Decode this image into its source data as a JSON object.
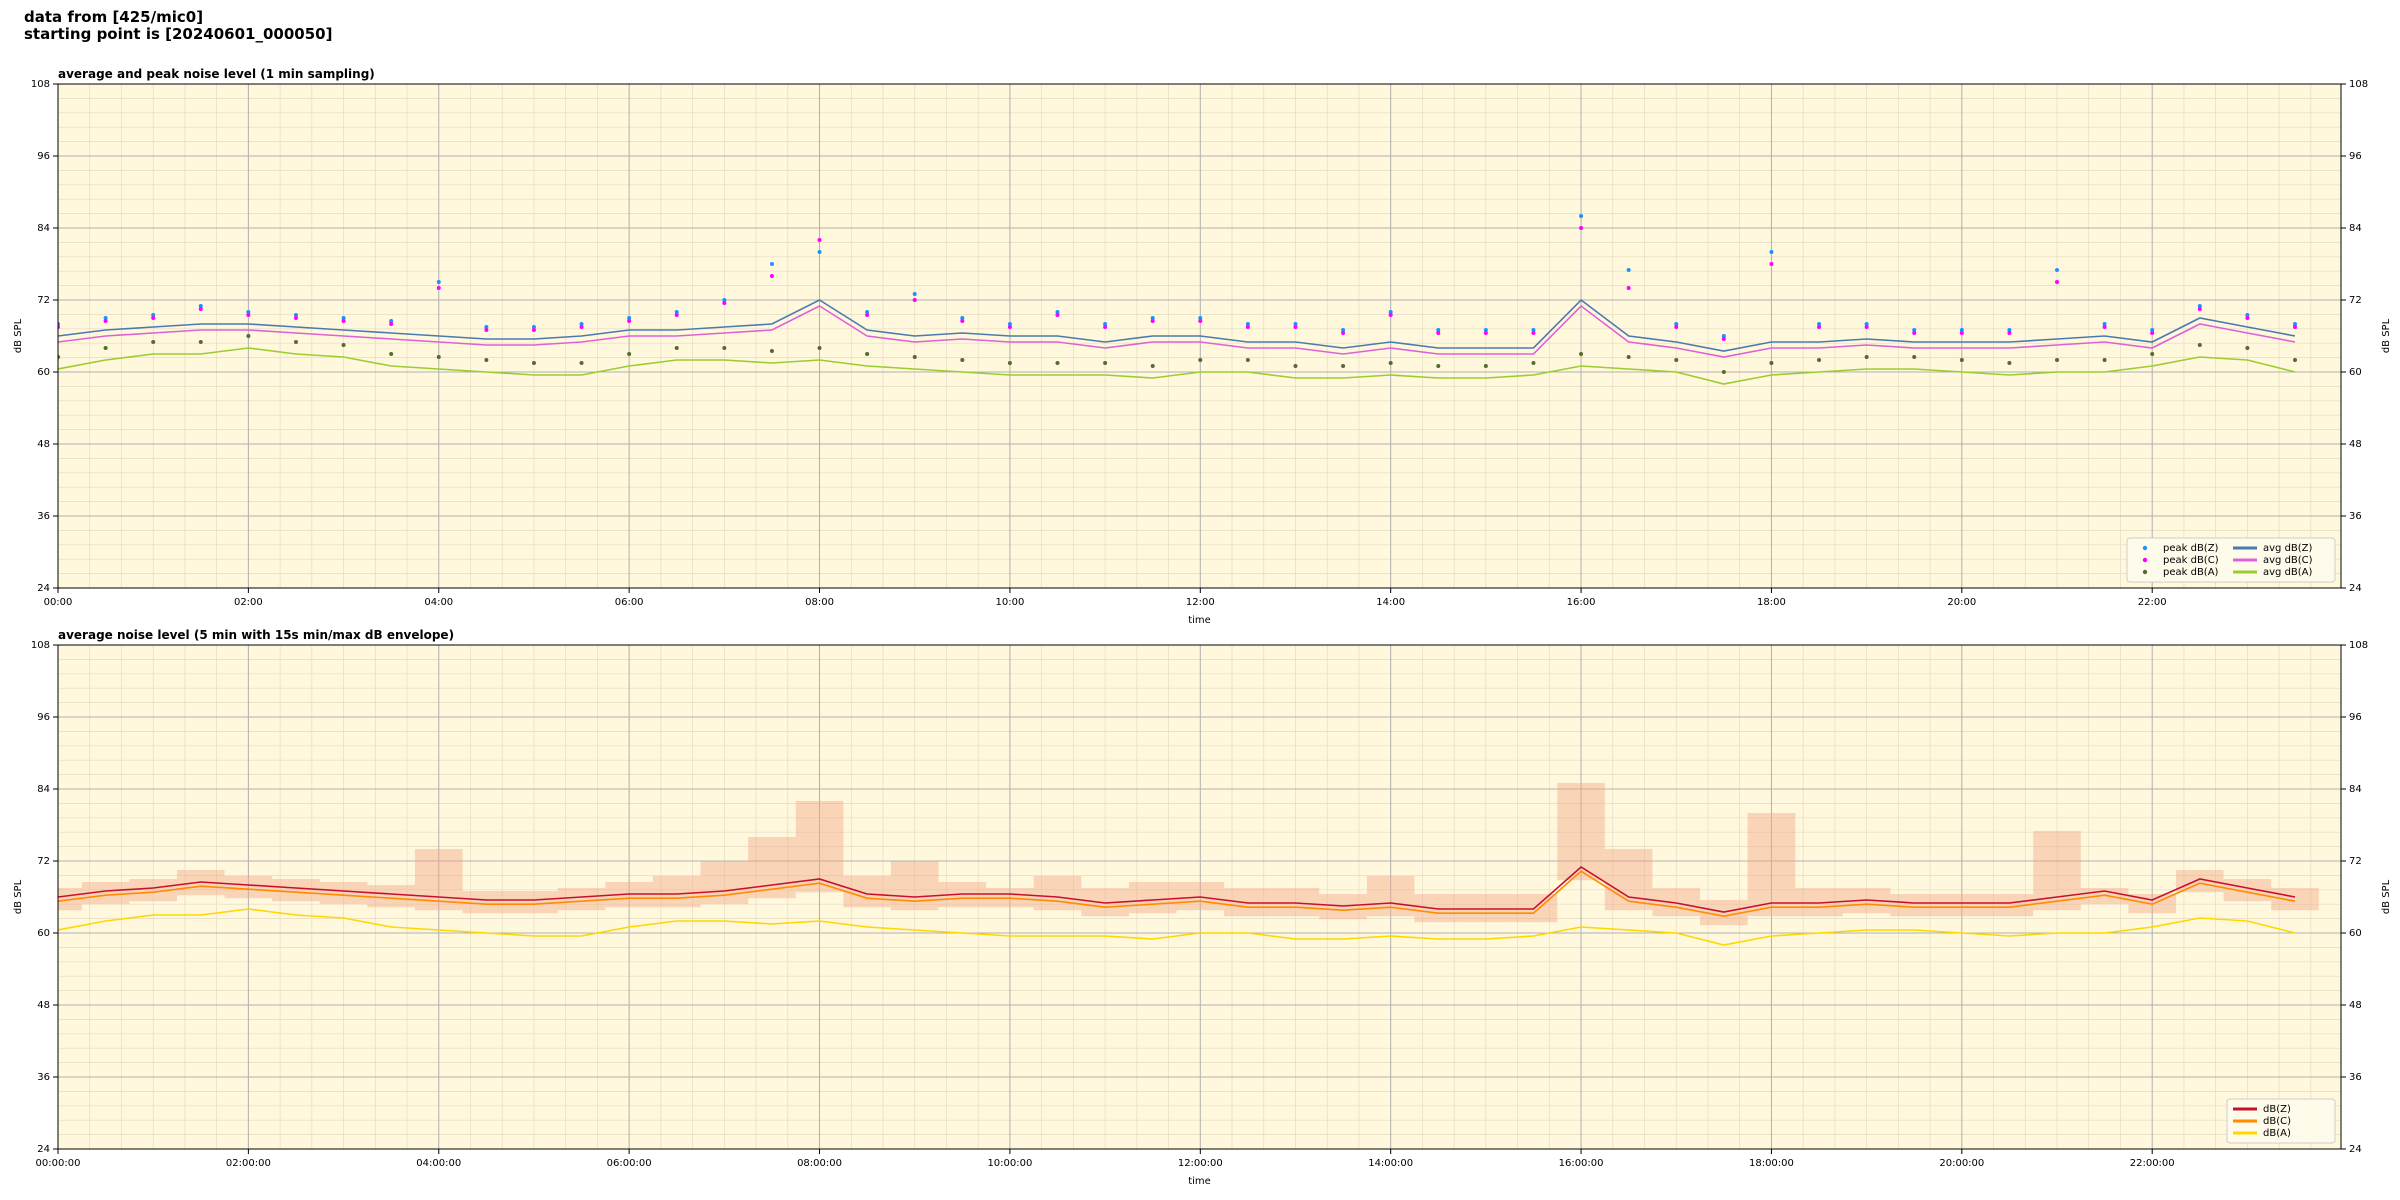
{
  "suptitle": [
    "data from [425/mic0]",
    "starting point is [20240601_000050]"
  ],
  "chart_data": [
    {
      "type": "line",
      "title": "average and peak noise level (1 min sampling)",
      "xlabel": "time",
      "ylabel": "dB SPL",
      "x": [
        "00:00",
        "00:30",
        "01:00",
        "01:30",
        "02:00",
        "02:30",
        "03:00",
        "03:30",
        "04:00",
        "04:30",
        "05:00",
        "05:30",
        "06:00",
        "06:30",
        "07:00",
        "07:30",
        "08:00",
        "08:30",
        "09:00",
        "09:30",
        "10:00",
        "10:30",
        "11:00",
        "11:30",
        "12:00",
        "12:30",
        "13:00",
        "13:30",
        "14:00",
        "14:30",
        "15:00",
        "15:30",
        "16:00",
        "16:30",
        "17:00",
        "17:30",
        "18:00",
        "18:30",
        "19:00",
        "19:30",
        "20:00",
        "20:30",
        "21:00",
        "21:30",
        "22:00",
        "22:30",
        "23:00",
        "23:30"
      ],
      "xlim": [
        "00:00",
        "23:59"
      ],
      "xticks": [
        "00:00",
        "02:00",
        "04:00",
        "06:00",
        "08:00",
        "10:00",
        "12:00",
        "14:00",
        "16:00",
        "18:00",
        "20:00",
        "22:00"
      ],
      "ylim": [
        24,
        108
      ],
      "yticks": [
        24,
        36,
        48,
        60,
        72,
        84,
        96,
        108
      ],
      "grid": true,
      "legend": "lower right",
      "legend_ncol": 2,
      "series": [
        {
          "name": "peak dB(Z)",
          "type": "scatter",
          "color": "#1e90ff",
          "values": [
            68,
            69,
            69.5,
            71,
            70,
            69.5,
            69,
            68.5,
            75,
            67.5,
            67.5,
            68,
            69,
            70,
            72,
            78,
            80,
            70,
            73,
            69,
            68,
            70,
            68,
            69,
            69,
            68,
            68,
            67,
            70,
            67,
            67,
            67,
            86,
            77,
            68,
            66,
            80,
            68,
            68,
            67,
            67,
            67,
            77,
            68,
            67,
            71,
            69.5,
            68
          ]
        },
        {
          "name": "peak dB(C)",
          "type": "scatter",
          "color": "#ff00ff",
          "values": [
            67.5,
            68.5,
            69,
            70.5,
            69.5,
            69,
            68.5,
            68,
            74,
            67,
            67,
            67.5,
            68.5,
            69.5,
            71.5,
            76,
            82,
            69.5,
            72,
            68.5,
            67.5,
            69.5,
            67.5,
            68.5,
            68.5,
            67.5,
            67.5,
            66.5,
            69.5,
            66.5,
            66.5,
            66.5,
            84,
            74,
            67.5,
            65.5,
            78,
            67.5,
            67.5,
            66.5,
            66.5,
            66.5,
            75,
            67.5,
            66.5,
            70.5,
            69,
            67.5
          ]
        },
        {
          "name": "peak dB(A)",
          "type": "scatter",
          "color": "#556b2f",
          "values": [
            62.5,
            64,
            65,
            65,
            66,
            65,
            64.5,
            63,
            62.5,
            62,
            61.5,
            61.5,
            63,
            64,
            64,
            63.5,
            64,
            63,
            62.5,
            62,
            61.5,
            61.5,
            61.5,
            61,
            62,
            62,
            61,
            61,
            61.5,
            61,
            61,
            61.5,
            63,
            62.5,
            62,
            60,
            61.5,
            62,
            62.5,
            62.5,
            62,
            61.5,
            62,
            62,
            63,
            64.5,
            64,
            62
          ]
        },
        {
          "name": "avg dB(Z)",
          "type": "line",
          "color": "#4a7ab0",
          "values": [
            66,
            67,
            67.5,
            68,
            68,
            67.5,
            67,
            66.5,
            66,
            65.5,
            65.5,
            66,
            67,
            67,
            67.5,
            68,
            72,
            67,
            66,
            66.5,
            66,
            66,
            65,
            66,
            66,
            65,
            65,
            64,
            65,
            64,
            64,
            64,
            72,
            66,
            65,
            63.5,
            65,
            65,
            65.5,
            65,
            65,
            65,
            65.5,
            66,
            65,
            69,
            67.5,
            66
          ]
        },
        {
          "name": "avg dB(C)",
          "type": "line",
          "color": "#e060d8",
          "values": [
            65,
            66,
            66.5,
            67,
            67,
            66.5,
            66,
            65.5,
            65,
            64.5,
            64.5,
            65,
            66,
            66,
            66.5,
            67,
            71,
            66,
            65,
            65.5,
            65,
            65,
            64,
            65,
            65,
            64,
            64,
            63,
            64,
            63,
            63,
            63,
            71,
            65,
            64,
            62.5,
            64,
            64,
            64.5,
            64,
            64,
            64,
            64.5,
            65,
            64,
            68,
            66.5,
            65
          ]
        },
        {
          "name": "avg dB(A)",
          "type": "line",
          "color": "#9acd32",
          "values": [
            60.5,
            62,
            63,
            63,
            64,
            63,
            62.5,
            61,
            60.5,
            60,
            59.5,
            59.5,
            61,
            62,
            62,
            61.5,
            62,
            61,
            60.5,
            60,
            59.5,
            59.5,
            59.5,
            59,
            60,
            60,
            59,
            59,
            59.5,
            59,
            59,
            59.5,
            61,
            60.5,
            60,
            58,
            59.5,
            60,
            60.5,
            60.5,
            60,
            59.5,
            60,
            60,
            61,
            62.5,
            62,
            60
          ]
        }
      ]
    },
    {
      "type": "line",
      "title": "average noise level (5 min with 15s min/max dB envelope)",
      "xlabel": "time",
      "ylabel": "dB SPL",
      "x": [
        "00:00:00",
        "00:30:00",
        "01:00:00",
        "01:30:00",
        "02:00:00",
        "02:30:00",
        "03:00:00",
        "03:30:00",
        "04:00:00",
        "04:30:00",
        "05:00:00",
        "05:30:00",
        "06:00:00",
        "06:30:00",
        "07:00:00",
        "07:30:00",
        "08:00:00",
        "08:30:00",
        "09:00:00",
        "09:30:00",
        "10:00:00",
        "10:30:00",
        "11:00:00",
        "11:30:00",
        "12:00:00",
        "12:30:00",
        "13:00:00",
        "13:30:00",
        "14:00:00",
        "14:30:00",
        "15:00:00",
        "15:30:00",
        "16:00:00",
        "16:30:00",
        "17:00:00",
        "17:30:00",
        "18:00:00",
        "18:30:00",
        "19:00:00",
        "19:30:00",
        "20:00:00",
        "20:30:00",
        "21:00:00",
        "21:30:00",
        "22:00:00",
        "22:30:00",
        "23:00:00",
        "23:30:00"
      ],
      "xlim": [
        "00:00:00",
        "23:59:00"
      ],
      "xticks": [
        "00:00:00",
        "02:00:00",
        "04:00:00",
        "06:00:00",
        "08:00:00",
        "10:00:00",
        "12:00:00",
        "14:00:00",
        "16:00:00",
        "18:00:00",
        "20:00:00",
        "22:00:00"
      ],
      "ylim": [
        24,
        108
      ],
      "yticks": [
        24,
        36,
        48,
        60,
        72,
        84,
        96,
        108
      ],
      "grid": true,
      "legend": "lower right",
      "legend_ncol": 1,
      "envelope": {
        "color": "#f4a88a",
        "lower": [
          63.8,
          64.8,
          65.3,
          66.3,
          65.8,
          65.3,
          64.8,
          64.3,
          63.8,
          63.3,
          63.3,
          63.8,
          64.3,
          64.3,
          64.8,
          65.8,
          66.8,
          64.3,
          63.8,
          64.3,
          64.3,
          63.8,
          62.8,
          63.3,
          63.8,
          62.8,
          62.8,
          62.3,
          62.8,
          61.8,
          61.8,
          61.8,
          68.8,
          63.8,
          62.8,
          61.3,
          62.8,
          62.8,
          63.3,
          62.8,
          62.8,
          62.8,
          63.8,
          64.8,
          63.3,
          66.8,
          65.3,
          63.8
        ],
        "upper": [
          67.5,
          68.5,
          69,
          70.5,
          69.5,
          69,
          68.5,
          68,
          74,
          67,
          67,
          67.5,
          68.5,
          69.5,
          72,
          76,
          82,
          69.5,
          72,
          68.5,
          67.5,
          69.5,
          67.5,
          68.5,
          68.5,
          67.5,
          67.5,
          66.5,
          69.5,
          66.5,
          66.5,
          66.5,
          85,
          74,
          67.5,
          65.5,
          80,
          67.5,
          67.5,
          66.5,
          66.5,
          66.5,
          77,
          67.5,
          66.5,
          70.5,
          69,
          67.5
        ]
      },
      "series": [
        {
          "name": "dB(Z)",
          "type": "line",
          "color": "#c8102e",
          "values": [
            66,
            67,
            67.5,
            68.5,
            68,
            67.5,
            67,
            66.5,
            66,
            65.5,
            65.5,
            66,
            66.5,
            66.5,
            67,
            68,
            69,
            66.5,
            66,
            66.5,
            66.5,
            66,
            65,
            65.5,
            66,
            65,
            65,
            64.5,
            65,
            64,
            64,
            64,
            71,
            66,
            65,
            63.5,
            65,
            65,
            65.5,
            65,
            65,
            65,
            66,
            67,
            65.5,
            69,
            67.5,
            66
          ]
        },
        {
          "name": "dB(C)",
          "type": "line",
          "color": "#ff8c00",
          "values": [
            65.3,
            66.3,
            66.8,
            67.8,
            67.3,
            66.8,
            66.3,
            65.8,
            65.3,
            64.8,
            64.8,
            65.3,
            65.8,
            65.8,
            66.3,
            67.3,
            68.3,
            65.8,
            65.3,
            65.8,
            65.8,
            65.3,
            64.3,
            64.8,
            65.3,
            64.3,
            64.3,
            63.8,
            64.3,
            63.3,
            63.3,
            63.3,
            70.3,
            65.3,
            64.3,
            62.8,
            64.3,
            64.3,
            64.8,
            64.3,
            64.3,
            64.3,
            65.3,
            66.3,
            64.8,
            68.3,
            66.8,
            65.3
          ]
        },
        {
          "name": "dB(A)",
          "type": "line",
          "color": "#ffd700",
          "values": [
            60.5,
            62,
            63,
            63,
            64,
            63,
            62.5,
            61,
            60.5,
            60,
            59.5,
            59.5,
            61,
            62,
            62,
            61.5,
            62,
            61,
            60.5,
            60,
            59.5,
            59.5,
            59.5,
            59,
            60,
            60,
            59,
            59,
            59.5,
            59,
            59,
            59.5,
            61,
            60.5,
            60,
            58,
            59.5,
            60,
            60.5,
            60.5,
            60,
            59.5,
            60,
            60,
            61,
            62.5,
            62,
            60
          ]
        }
      ]
    }
  ]
}
